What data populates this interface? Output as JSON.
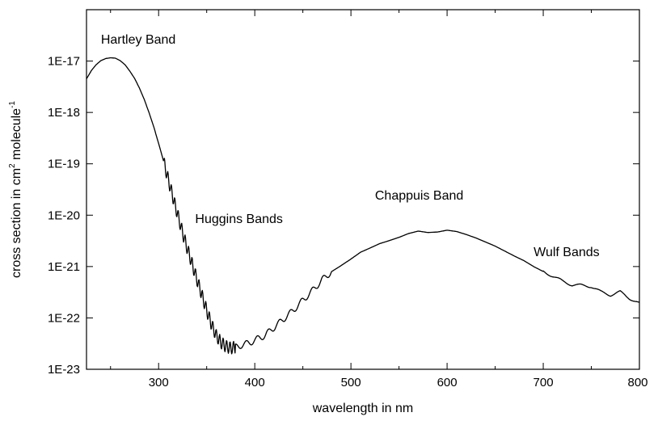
{
  "chart_data": {
    "type": "line",
    "title": "",
    "xlabel": "wavelength in nm",
    "ylabel_main": "cross section in cm",
    "ylabel_sup1": "2",
    "ylabel_mid": " molecule",
    "ylabel_sup2": "-1",
    "xlim": [
      225,
      800
    ],
    "ylim": [
      1e-23,
      1e-16
    ],
    "yscale": "log",
    "grid": false,
    "legend": "none",
    "xticks": [
      300,
      400,
      500,
      600,
      700,
      800
    ],
    "xtick_labels": [
      "300",
      "400",
      "500",
      "600",
      "700",
      "800"
    ],
    "yticks": [
      1e-23,
      1e-22,
      1e-21,
      1e-20,
      1e-19,
      1e-18,
      1e-17
    ],
    "ytick_labels": [
      "1E-23",
      "1E-22",
      "1E-21",
      "1E-20",
      "1E-19",
      "1E-18",
      "1E-17"
    ],
    "annotations": [
      {
        "text": "Hartley Band",
        "x": 240,
        "y": 2.2e-17
      },
      {
        "text": "Huggins Bands",
        "x": 338,
        "y": 7e-21
      },
      {
        "text": "Chappuis Band",
        "x": 525,
        "y": 2e-20
      },
      {
        "text": "Wulf Bands",
        "x": 690,
        "y": 1.6e-21
      }
    ],
    "series": [
      {
        "color": "#000000",
        "x": [
          225,
          230,
          235,
          240,
          245,
          250,
          255,
          260,
          265,
          270,
          275,
          280,
          285,
          290,
          295,
          300,
          305,
          310,
          315,
          320,
          325,
          330,
          335,
          340,
          345,
          350,
          355,
          360,
          365,
          370,
          375,
          380,
          385,
          390,
          395,
          400,
          410,
          420,
          430,
          440,
          450,
          460,
          470,
          480,
          490,
          500,
          510,
          520,
          530,
          540,
          550,
          560,
          570,
          580,
          590,
          600,
          610,
          620,
          630,
          640,
          650,
          660,
          670,
          680,
          690,
          700,
          710,
          720,
          730,
          740,
          750,
          760,
          770,
          780,
          790,
          800
        ],
        "y": [
          4.5e-18,
          6.5e-18,
          8.5e-18,
          1.02e-17,
          1.12e-17,
          1.16e-17,
          1.14e-17,
          1.02e-17,
          8.5e-18,
          6.4e-18,
          4.6e-18,
          3e-18,
          1.8e-18,
          1e-18,
          5.2e-19,
          2.5e-19,
          1.15e-19,
          5e-20,
          2.2e-20,
          1e-20,
          4.5e-21,
          2.2e-21,
          1.1e-21,
          5.5e-22,
          2.8e-22,
          1.4e-22,
          7.5e-23,
          4.5e-23,
          3.3e-23,
          2.8e-23,
          2.6e-23,
          2.7e-23,
          2.9e-23,
          3.1e-23,
          3.3e-23,
          3.7e-23,
          4.5e-23,
          6.5e-23,
          9.5e-23,
          1.4e-22,
          2.2e-22,
          3.4e-22,
          5.5e-22,
          8e-22,
          1.05e-21,
          1.4e-21,
          1.9e-21,
          2.3e-21,
          2.8e-21,
          3.2e-21,
          3.7e-21,
          4.4e-21,
          4.9e-21,
          4.6e-21,
          4.7e-21,
          5.1e-21,
          4.8e-21,
          4.2e-21,
          3.6e-21,
          3e-21,
          2.5e-21,
          2e-21,
          1.6e-21,
          1.3e-21,
          1e-21,
          8e-22,
          6.5e-22,
          5.2e-22,
          4.4e-22,
          4.3e-22,
          4.1e-22,
          3.2e-22,
          2.8e-22,
          3.2e-22,
          2.4e-22,
          1.9e-22
        ]
      }
    ]
  }
}
